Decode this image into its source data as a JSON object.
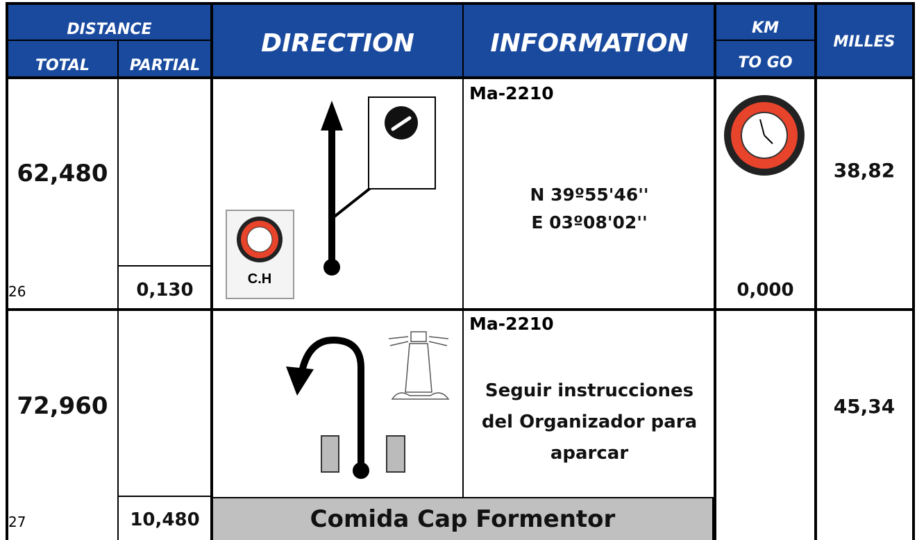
{
  "header": {
    "distance": "DISTANCE",
    "total": "TOTAL",
    "partial": "PARTIAL",
    "direction": "DIRECTION",
    "information": "INFORMATION",
    "km": "KM",
    "to_go": "TO GO",
    "milles": "MILLES"
  },
  "rows": [
    {
      "index": "26",
      "total": "62,480",
      "partial": "0,130",
      "icon_label": "C.H",
      "road": "Ma-2210",
      "info_lines": [
        "N 39º55'46''",
        "E 03º08'02''"
      ],
      "km_to_go": "0,000",
      "milles": "38,82"
    },
    {
      "index": "27",
      "total": "72,960",
      "partial": "10,480",
      "road": "Ma-2210",
      "info_lines": [
        "Seguir instrucciones",
        "del Organizador para",
        "aparcar"
      ],
      "milles": "45,34",
      "note": "Comida Cap Formentor"
    }
  ]
}
